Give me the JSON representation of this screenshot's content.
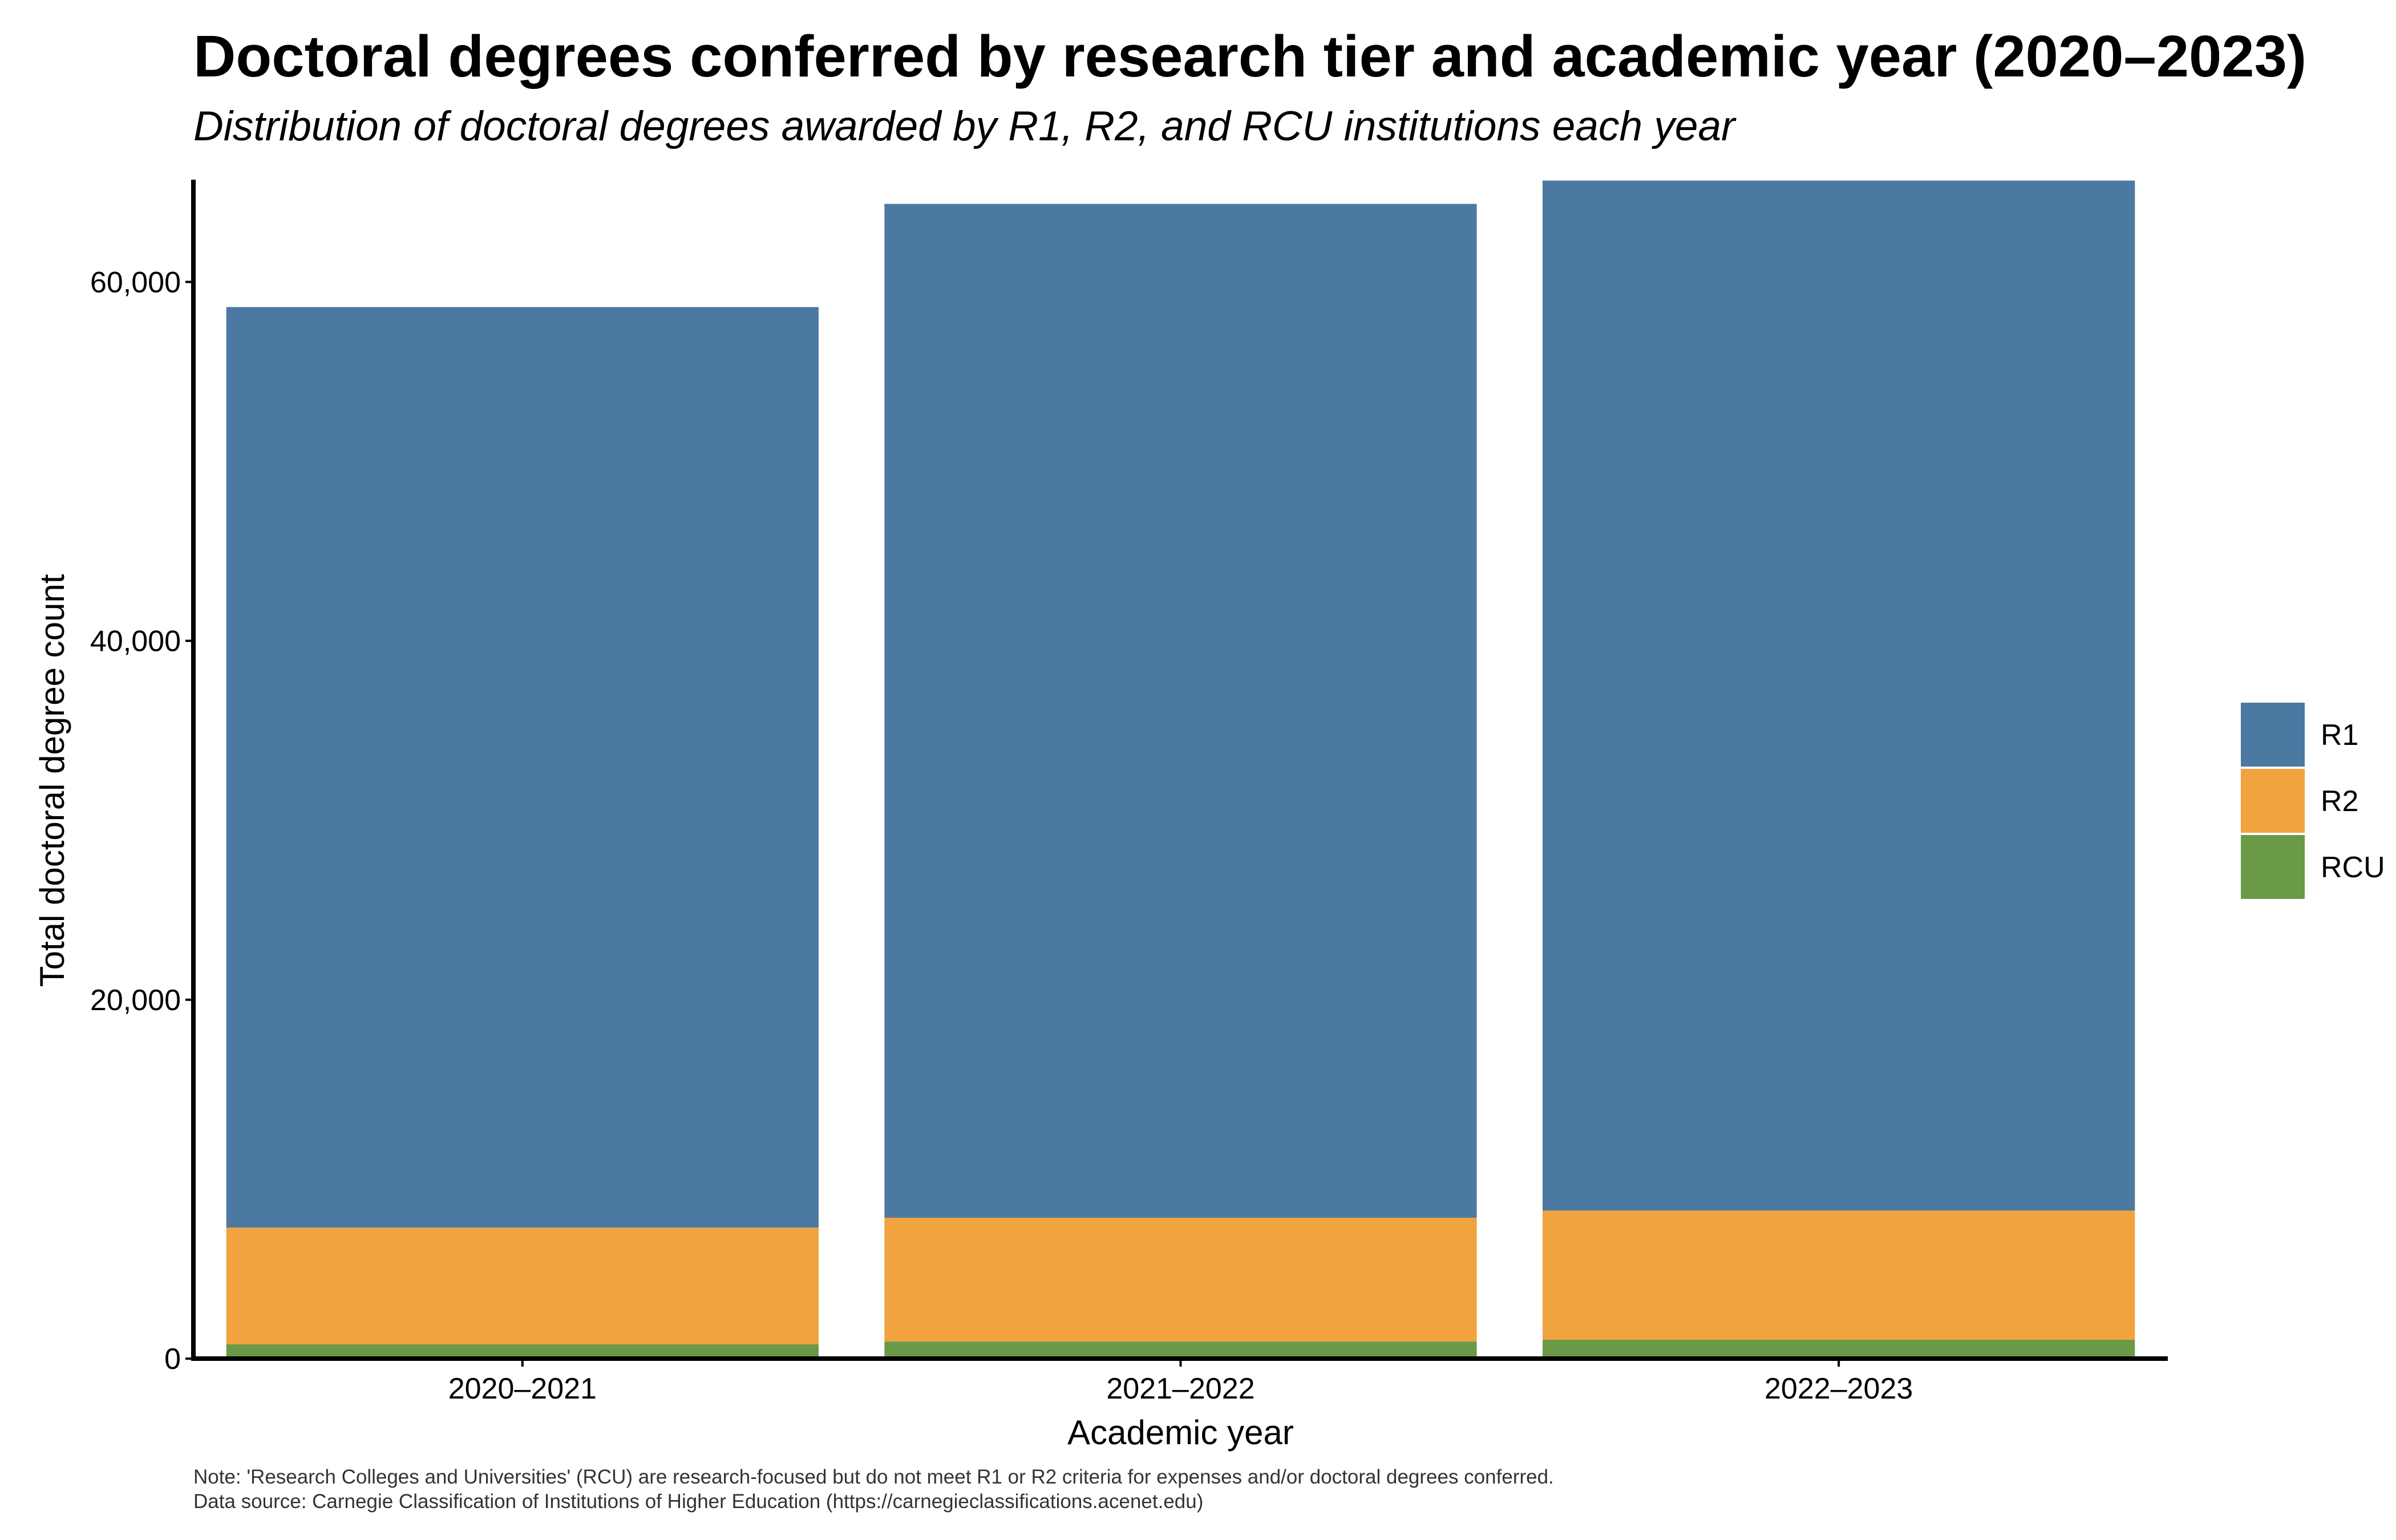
{
  "title": "Doctoral degrees conferred by research tier and academic year (2020–2023)",
  "subtitle": "Distribution of doctoral degrees awarded by R1, R2, and RCU institutions each year",
  "notes": [
    "Note: 'Research Colleges and Universities' (RCU) are research-focused but do not meet R1 or R2 criteria for expenses and/or doctoral degrees conferred.",
    "Data source: Carnegie Classification of Institutions of Higher Education (https://carnegieclassifications.acenet.edu)"
  ],
  "chart_data": {
    "type": "bar",
    "stacked": true,
    "categories": [
      "2020–2021",
      "2021–2022",
      "2022–2023"
    ],
    "series": [
      {
        "name": "RCU",
        "color": "#6a9a48",
        "values": [
          800,
          950,
          1050
        ]
      },
      {
        "name": "R2",
        "color": "#f0a33f",
        "values": [
          6500,
          6900,
          7200
        ]
      },
      {
        "name": "R1",
        "color": "#4c79a1",
        "values": [
          51300,
          56500,
          57400
        ]
      }
    ],
    "legend_order": [
      "R1",
      "R2",
      "RCU"
    ],
    "legend_position": "right",
    "xlabel": "Academic year",
    "ylabel": "Total doctoral degree count",
    "ylim": [
      0,
      65700
    ],
    "yticks": [
      0,
      20000,
      40000,
      60000
    ],
    "ytick_labels": [
      "0",
      "20,000",
      "40,000",
      "60,000"
    ],
    "grid": false
  }
}
